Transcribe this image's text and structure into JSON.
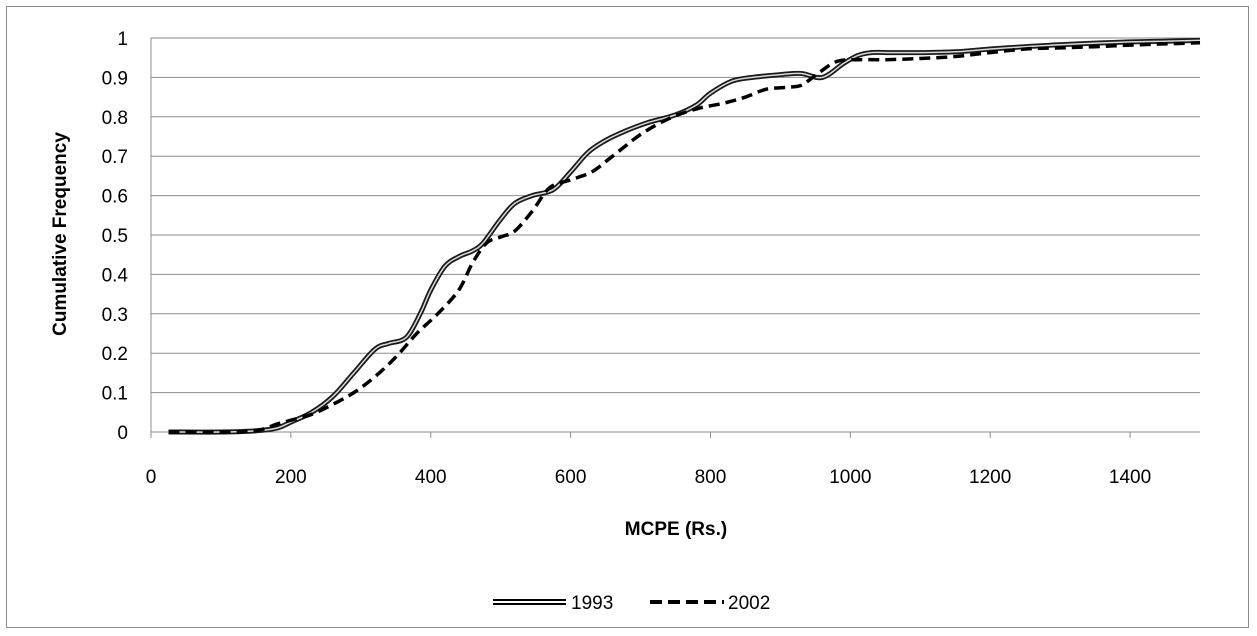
{
  "chart_data": {
    "type": "line",
    "xlabel": "MCPE (Rs.)",
    "ylabel": "Cumulative Frequency",
    "xlim": [
      0,
      1500
    ],
    "ylim": [
      0,
      1
    ],
    "x_ticks": [
      "0",
      "200",
      "400",
      "600",
      "800",
      "1000",
      "1200",
      "1400"
    ],
    "y_ticks": [
      "0",
      "0.1",
      "0.2",
      "0.3",
      "0.4",
      "0.5",
      "0.6",
      "0.7",
      "0.8",
      "0.9",
      "1"
    ],
    "grid": "horizontal",
    "legend_position": "bottom",
    "series": [
      {
        "name": "1993",
        "style": "double-solid",
        "color": "#000000",
        "x": [
          25,
          100,
          150,
          180,
          200,
          230,
          260,
          290,
          320,
          340,
          365,
          385,
          400,
          420,
          440,
          460,
          475,
          500,
          520,
          545,
          575,
          600,
          625,
          650,
          680,
          710,
          750,
          780,
          800,
          830,
          860,
          900,
          930,
          960,
          990,
          1010,
          1030,
          1060,
          1100,
          1150,
          1200,
          1250,
          1300,
          1350,
          1400,
          1450,
          1500
        ],
        "y": [
          0,
          0,
          0.003,
          0.01,
          0.025,
          0.05,
          0.09,
          0.15,
          0.21,
          0.225,
          0.24,
          0.3,
          0.36,
          0.42,
          0.445,
          0.46,
          0.48,
          0.54,
          0.58,
          0.6,
          0.615,
          0.66,
          0.71,
          0.74,
          0.765,
          0.785,
          0.805,
          0.83,
          0.86,
          0.89,
          0.9,
          0.907,
          0.91,
          0.9,
          0.935,
          0.955,
          0.963,
          0.963,
          0.963,
          0.965,
          0.972,
          0.978,
          0.983,
          0.987,
          0.99,
          0.992,
          0.994
        ]
      },
      {
        "name": "2002",
        "style": "dashed",
        "color": "#000000",
        "x": [
          25,
          100,
          150,
          180,
          200,
          230,
          260,
          290,
          320,
          350,
          380,
          410,
          440,
          460,
          480,
          500,
          520,
          545,
          570,
          600,
          630,
          660,
          700,
          740,
          780,
          820,
          850,
          880,
          910,
          930,
          950,
          980,
          1010,
          1050,
          1100,
          1150,
          1200,
          1250,
          1300,
          1350,
          1400,
          1450,
          1500
        ],
        "y": [
          0,
          0,
          0.003,
          0.02,
          0.03,
          0.045,
          0.07,
          0.1,
          0.14,
          0.19,
          0.25,
          0.3,
          0.36,
          0.43,
          0.48,
          0.495,
          0.51,
          0.56,
          0.62,
          0.64,
          0.66,
          0.7,
          0.755,
          0.795,
          0.82,
          0.835,
          0.85,
          0.87,
          0.875,
          0.88,
          0.905,
          0.94,
          0.945,
          0.945,
          0.948,
          0.953,
          0.963,
          0.972,
          0.975,
          0.978,
          0.982,
          0.985,
          0.988
        ]
      }
    ]
  }
}
